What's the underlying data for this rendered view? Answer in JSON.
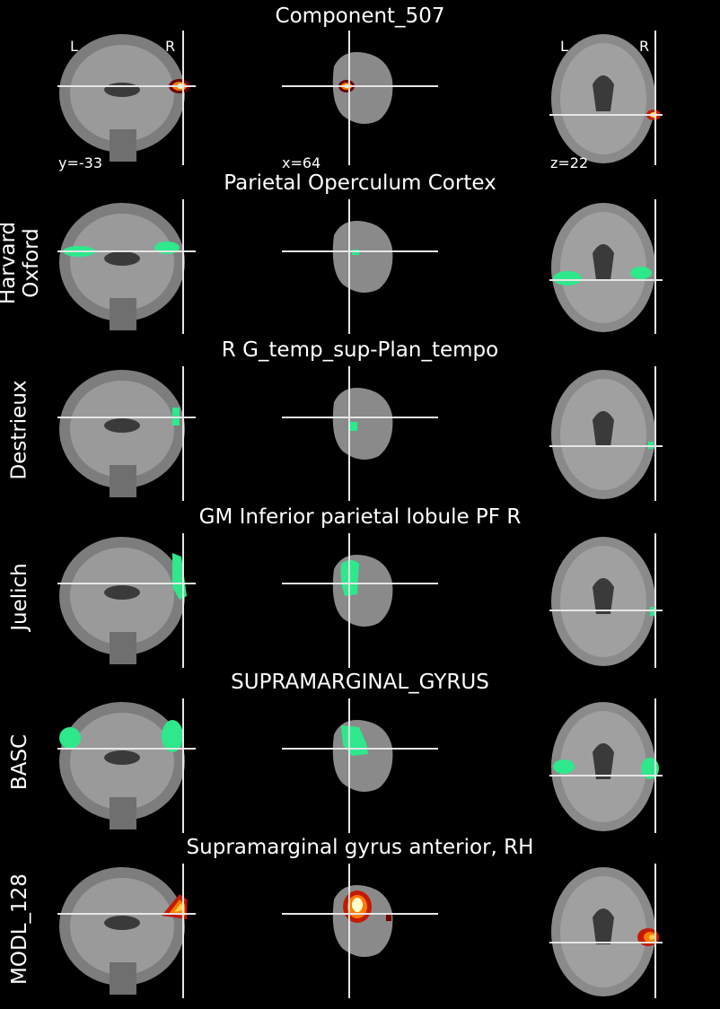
{
  "figure_title": "Component_507",
  "orientation": {
    "left": "L",
    "right": "R"
  },
  "coords": {
    "coronal": "y=-33",
    "sagittal": "x=64",
    "axial": "z=22"
  },
  "colors": {
    "background": "#000000",
    "crosshair": "#e6e6e6",
    "atlas_overlay": "#2ee88c",
    "component_hot": [
      "#ffffcc",
      "#ffd54a",
      "#ff7a00",
      "#c41a00",
      "#6a0000"
    ]
  },
  "rows": [
    {
      "id": "component",
      "atlas_name": "",
      "region": "Component_507",
      "overlay": "hot-small"
    },
    {
      "id": "harvard-oxford",
      "atlas_name": "Harvard\nOxford",
      "region": "Parietal Operculum Cortex",
      "overlay": "green"
    },
    {
      "id": "destrieux",
      "atlas_name": "Destrieux",
      "region": "R G_temp_sup-Plan_tempo",
      "overlay": "green"
    },
    {
      "id": "juelich",
      "atlas_name": "Juelich",
      "region": "GM Inferior parietal lobule PF R",
      "overlay": "green"
    },
    {
      "id": "basc",
      "atlas_name": "BASC",
      "region": "SUPRAMARGINAL_GYRUS",
      "overlay": "green"
    },
    {
      "id": "modl-128",
      "atlas_name": "MODL_128",
      "region": "Supramarginal gyrus anterior, RH",
      "overlay": "hot-large"
    }
  ]
}
